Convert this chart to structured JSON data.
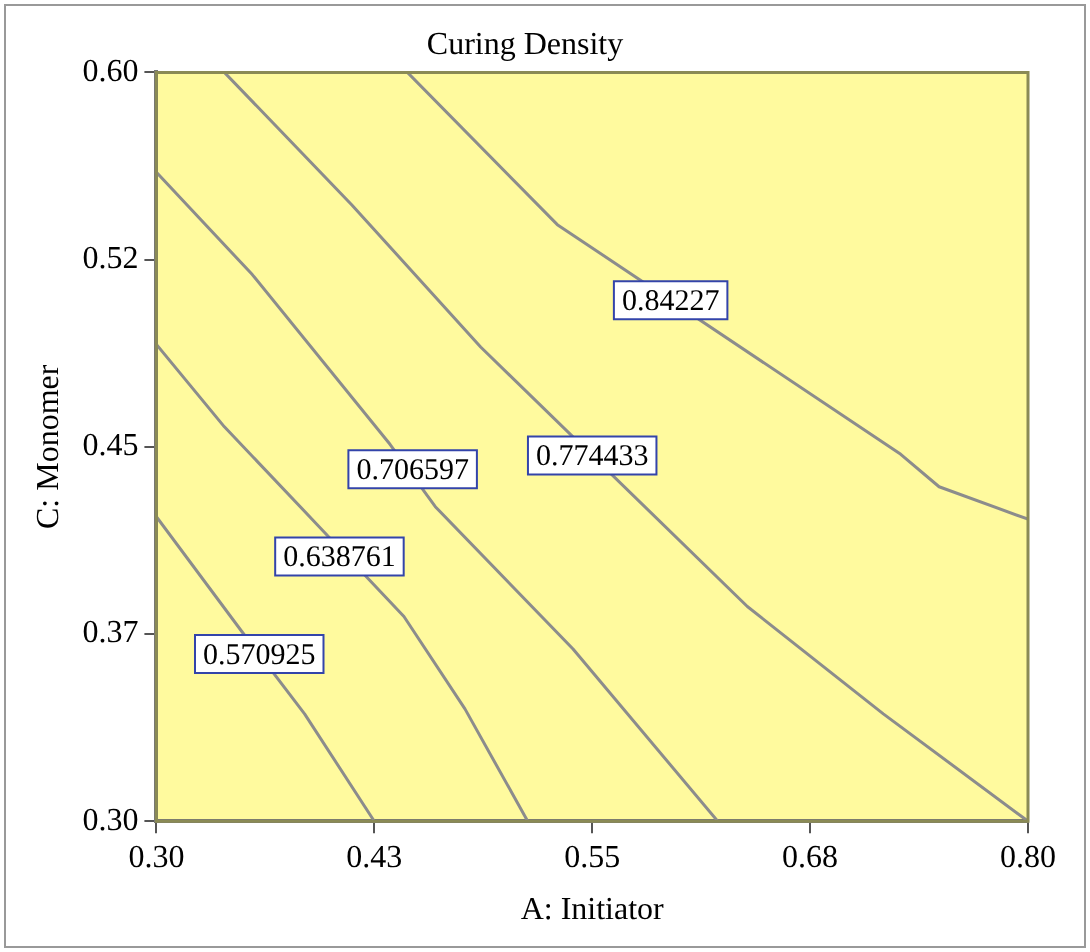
{
  "chart_data": {
    "type": "line",
    "title": "Curing Density",
    "xlabel": "A: Initiator",
    "ylabel": "C: Monomer",
    "xlim": [
      0.3,
      0.8
    ],
    "ylim": [
      0.3,
      0.6
    ],
    "xticks": [
      {
        "value": 0.3,
        "label": "0.30"
      },
      {
        "value": 0.425,
        "label": "0.43"
      },
      {
        "value": 0.55,
        "label": "0.55"
      },
      {
        "value": 0.675,
        "label": "0.68"
      },
      {
        "value": 0.8,
        "label": "0.80"
      }
    ],
    "yticks": [
      {
        "value": 0.3,
        "label": "0.30"
      },
      {
        "value": 0.375,
        "label": "0.37"
      },
      {
        "value": 0.45,
        "label": "0.45"
      },
      {
        "value": 0.525,
        "label": "0.52"
      },
      {
        "value": 0.6,
        "label": "0.60"
      }
    ],
    "series": [
      {
        "color": "#8c8c8c",
        "x": [
          0.3,
          0.349,
          0.385,
          0.425
        ],
        "values": [
          0.422,
          0.376,
          0.343,
          0.3
        ]
      },
      {
        "color": "#8c8c8c",
        "x": [
          0.3,
          0.339,
          0.392,
          0.442,
          0.477,
          0.513
        ],
        "values": [
          0.491,
          0.458,
          0.419,
          0.382,
          0.345,
          0.3
        ]
      },
      {
        "color": "#8c8c8c",
        "x": [
          0.3,
          0.355,
          0.434,
          0.46,
          0.539,
          0.622
        ],
        "values": [
          0.56,
          0.519,
          0.451,
          0.426,
          0.369,
          0.3
        ]
      },
      {
        "color": "#8c8c8c",
        "x": [
          0.339,
          0.412,
          0.486,
          0.639,
          0.717,
          0.8
        ],
        "values": [
          0.6,
          0.547,
          0.49,
          0.386,
          0.343,
          0.3
        ]
      },
      {
        "color": "#8c8c8c",
        "x": [
          0.444,
          0.53,
          0.727,
          0.749,
          0.8
        ],
        "values": [
          0.6,
          0.539,
          0.447,
          0.434,
          0.421
        ]
      }
    ],
    "annotations": [
      {
        "text": "0.570925",
        "x": 0.359,
        "y": 0.367
      },
      {
        "text": "0.638761",
        "x": 0.405,
        "y": 0.406
      },
      {
        "text": "0.706597",
        "x": 0.447,
        "y": 0.441
      },
      {
        "text": "0.774433",
        "x": 0.55,
        "y": 0.4465
      },
      {
        "text": "0.84227",
        "x": 0.595,
        "y": 0.5087
      }
    ],
    "grid": false,
    "legend": false,
    "marker": "none",
    "line_style": "solid"
  }
}
